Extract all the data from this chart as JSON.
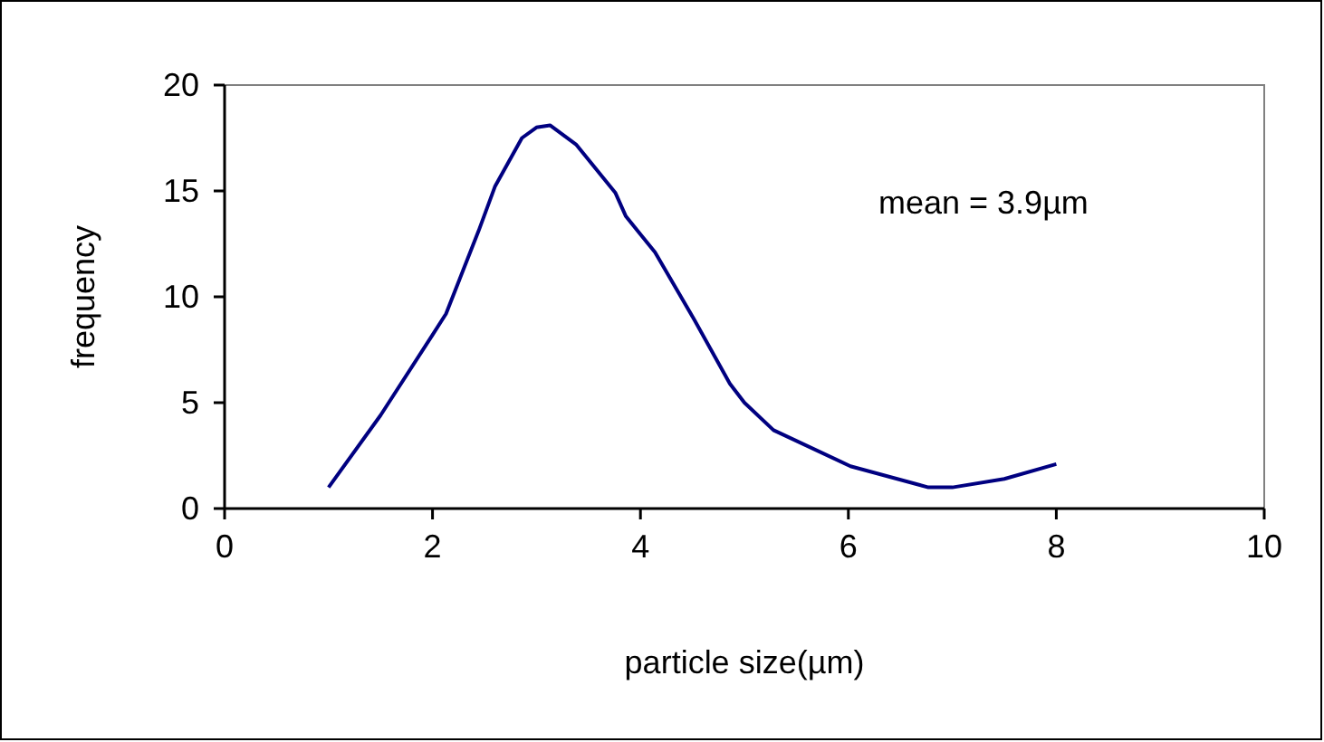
{
  "chart_data": {
    "type": "line",
    "xlabel": "particle size(µm)",
    "ylabel": "frequency",
    "annotations": [
      "mean = 3.9µm"
    ],
    "xlim": [
      0,
      10
    ],
    "xticks": [
      0,
      2,
      4,
      6,
      8,
      10
    ],
    "ylim": [
      0,
      20
    ],
    "yticks": [
      0,
      5,
      10,
      15,
      20
    ],
    "grid": false,
    "marker": "none",
    "line_style": "solid",
    "series": [
      {
        "color": "#000080",
        "x": [
          1.0,
          1.5,
          2.0,
          2.13,
          2.45,
          2.6,
          2.86,
          3.0,
          3.13,
          3.38,
          3.76,
          3.86,
          4.14,
          4.52,
          4.86,
          5.0,
          5.28,
          6.02,
          6.77,
          7.0,
          7.5,
          8.0
        ],
        "values": [
          1.0,
          4.4,
          8.2,
          9.2,
          13.2,
          15.2,
          17.5,
          18.0,
          18.1,
          17.2,
          14.9,
          13.8,
          12.1,
          8.9,
          5.9,
          5.0,
          3.7,
          2.0,
          1.0,
          1.0,
          1.4,
          2.1
        ]
      }
    ]
  }
}
